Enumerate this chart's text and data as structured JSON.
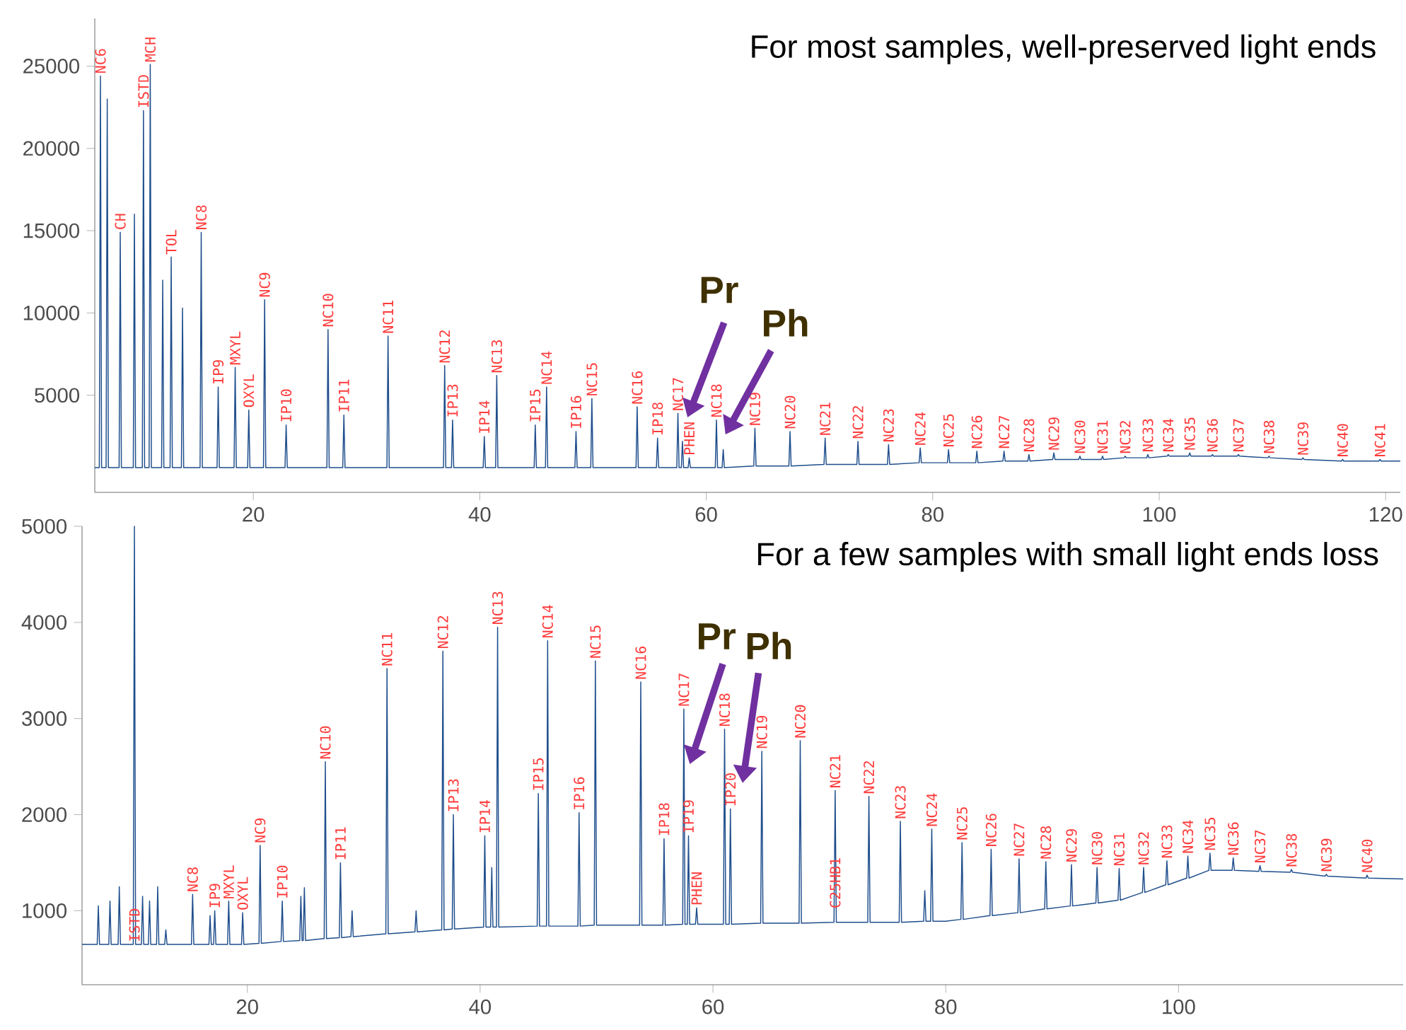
{
  "chart_data": [
    {
      "type": "line",
      "color": "#1f4e8c",
      "xlim": [
        6,
        121.3
      ],
      "ylim": [
        -900,
        27900
      ],
      "xticks": [
        20,
        40,
        60,
        80,
        100,
        120
      ],
      "yticks": [
        5000,
        10000,
        15000,
        20000,
        25000
      ],
      "x": [
        6.0,
        6.4,
        6.5,
        6.6,
        7.0,
        7.1,
        7.2,
        8.15,
        8.25,
        8.35,
        9.4,
        9.5,
        9.6,
        10.2,
        10.3,
        10.4,
        10.8,
        10.9,
        11.0,
        11.9,
        12.0,
        12.1,
        12.65,
        12.75,
        12.85,
        13.65,
        13.75,
        13.85,
        15.3,
        15.4,
        15.5,
        16.8,
        16.9,
        17.0,
        18.3,
        18.4,
        18.5,
        19.5,
        19.6,
        19.7,
        20.9,
        21.0,
        21.1,
        22.8,
        22.9,
        23.0,
        26.5,
        26.6,
        26.7,
        27.9,
        28.0,
        28.1,
        31.8,
        31.9,
        32.0,
        36.8,
        36.9,
        37.0,
        37.5,
        37.6,
        37.7,
        40.3,
        40.4,
        40.5,
        41.4,
        41.5,
        41.6,
        44.8,
        44.9,
        45.0,
        45.8,
        45.9,
        46.0,
        48.4,
        48.5,
        48.6,
        49.8,
        49.9,
        50.0,
        53.8,
        53.9,
        54.0,
        55.6,
        55.7,
        55.8,
        57.4,
        57.5,
        57.6,
        57.8,
        57.9,
        58.0,
        58.4,
        58.5,
        58.6,
        60.0,
        60.8,
        60.9,
        61.0,
        61.4,
        61.5,
        61.6,
        64.2,
        64.3,
        64.4,
        67.3,
        67.4,
        67.5,
        70.4,
        70.5,
        70.6,
        73.3,
        73.4,
        73.5,
        76.0,
        76.1,
        76.2,
        78.8,
        78.9,
        79.0,
        81.3,
        81.4,
        81.5,
        83.8,
        83.9,
        84.0,
        86.2,
        86.3,
        86.4,
        88.4,
        88.5,
        88.6,
        90.6,
        90.7,
        90.8,
        92.9,
        93.0,
        93.1,
        94.9,
        95.0,
        95.1,
        96.9,
        97.0,
        97.1,
        98.9,
        99.0,
        99.1,
        100.7,
        100.8,
        100.9,
        102.6,
        102.7,
        102.8,
        104.6,
        104.7,
        104.8,
        106.9,
        107.0,
        107.1,
        109.6,
        109.7,
        109.8,
        112.6,
        112.7,
        112.8,
        116.1,
        116.2,
        116.3,
        119.4,
        119.5,
        119.6,
        121.3
      ],
      "values": [
        600,
        600,
        24400,
        600,
        600,
        23000,
        600,
        600,
        14900,
        600,
        600,
        16000,
        600,
        600,
        22300,
        600,
        600,
        25100,
        600,
        600,
        12000,
        600,
        600,
        13400,
        600,
        600,
        10300,
        600,
        600,
        14900,
        600,
        600,
        5500,
        600,
        600,
        6700,
        600,
        600,
        4100,
        600,
        600,
        10800,
        600,
        600,
        3200,
        600,
        600,
        9000,
        600,
        600,
        3800,
        600,
        600,
        8600,
        600,
        600,
        6800,
        600,
        600,
        3500,
        600,
        600,
        2500,
        600,
        600,
        6200,
        600,
        600,
        3200,
        600,
        600,
        5500,
        600,
        600,
        2800,
        600,
        600,
        4800,
        600,
        600,
        4300,
        600,
        600,
        2400,
        600,
        600,
        3900,
        600,
        600,
        2200,
        600,
        600,
        1200,
        600,
        600,
        600,
        3500,
        600,
        600,
        1700,
        600,
        700,
        3000,
        700,
        700,
        2800,
        700,
        800,
        2400,
        800,
        800,
        2200,
        800,
        800,
        2000,
        800,
        900,
        1800,
        900,
        900,
        1700,
        900,
        900,
        1600,
        900,
        1000,
        1600,
        1000,
        1000,
        1400,
        1000,
        1100,
        1500,
        1100,
        1100,
        1300,
        1100,
        1100,
        1300,
        1100,
        1200,
        1300,
        1200,
        1200,
        1400,
        1200,
        1300,
        1400,
        1300,
        1300,
        1500,
        1300,
        1300,
        1400,
        1300,
        1300,
        1400,
        1300,
        1200,
        1300,
        1200,
        1100,
        1200,
        1100,
        1000,
        1100,
        1000,
        1000,
        1100,
        1000,
        1000
      ],
      "annotations": [
        "For most samples, well-preserved light ends",
        "Pr",
        "Ph",
        {
          "text": "NC6",
          "x": 6.5,
          "y": 24400
        },
        {
          "text": "CH",
          "x": 8.25,
          "y": 14900
        },
        {
          "text": "ISTD",
          "x": 10.3,
          "y": 22300
        },
        {
          "text": "MCH",
          "x": 10.9,
          "y": 25100
        },
        {
          "text": "TOL",
          "x": 12.75,
          "y": 13400
        },
        {
          "text": "NC8",
          "x": 15.4,
          "y": 14900
        },
        {
          "text": "IP9",
          "x": 16.9,
          "y": 5500
        },
        {
          "text": "MXYL",
          "x": 18.4,
          "y": 6700
        },
        {
          "text": "OXYL",
          "x": 19.6,
          "y": 4100
        },
        {
          "text": "NC9",
          "x": 21.0,
          "y": 10800
        },
        {
          "text": "IP10",
          "x": 22.9,
          "y": 3200
        },
        {
          "text": "NC10",
          "x": 26.6,
          "y": 9000
        },
        {
          "text": "IP11",
          "x": 28.0,
          "y": 3800
        },
        {
          "text": "NC11",
          "x": 31.9,
          "y": 8600
        },
        {
          "text": "NC12",
          "x": 36.9,
          "y": 6800
        },
        {
          "text": "IP13",
          "x": 37.6,
          "y": 3500
        },
        {
          "text": "IP14",
          "x": 40.4,
          "y": 2500
        },
        {
          "text": "NC13",
          "x": 41.5,
          "y": 6200
        },
        {
          "text": "IP15",
          "x": 44.9,
          "y": 3200
        },
        {
          "text": "NC14",
          "x": 45.9,
          "y": 5500
        },
        {
          "text": "IP16",
          "x": 48.5,
          "y": 2800
        },
        {
          "text": "NC15",
          "x": 49.9,
          "y": 4800
        },
        {
          "text": "NC16",
          "x": 53.9,
          "y": 4300
        },
        {
          "text": "IP18",
          "x": 55.7,
          "y": 2400
        },
        {
          "text": "NC17",
          "x": 57.5,
          "y": 3900
        },
        {
          "text": "PHEN",
          "x": 58.5,
          "y": 1200
        },
        {
          "text": "NC18",
          "x": 60.9,
          "y": 3500
        },
        {
          "text": "NC19",
          "x": 64.3,
          "y": 3000
        },
        {
          "text": "NC20",
          "x": 67.4,
          "y": 2800
        },
        {
          "text": "NC21",
          "x": 70.5,
          "y": 2400
        },
        {
          "text": "NC22",
          "x": 73.4,
          "y": 2200
        },
        {
          "text": "NC23",
          "x": 76.1,
          "y": 2000
        },
        {
          "text": "NC24",
          "x": 78.9,
          "y": 1800
        },
        {
          "text": "NC25",
          "x": 81.4,
          "y": 1700
        },
        {
          "text": "NC26",
          "x": 83.9,
          "y": 1600
        },
        {
          "text": "NC27",
          "x": 86.3,
          "y": 1600
        },
        {
          "text": "NC28",
          "x": 88.5,
          "y": 1400
        },
        {
          "text": "NC29",
          "x": 90.7,
          "y": 1500
        },
        {
          "text": "NC30",
          "x": 93.0,
          "y": 1300
        },
        {
          "text": "NC31",
          "x": 95.0,
          "y": 1300
        },
        {
          "text": "NC32",
          "x": 97.0,
          "y": 1300
        },
        {
          "text": "NC33",
          "x": 99.0,
          "y": 1400
        },
        {
          "text": "NC34",
          "x": 100.8,
          "y": 1400
        },
        {
          "text": "NC35",
          "x": 102.7,
          "y": 1500
        },
        {
          "text": "NC36",
          "x": 104.7,
          "y": 1400
        },
        {
          "text": "NC37",
          "x": 107.0,
          "y": 1400
        },
        {
          "text": "NC38",
          "x": 109.7,
          "y": 1300
        },
        {
          "text": "NC39",
          "x": 112.7,
          "y": 1200
        },
        {
          "text": "NC40",
          "x": 116.2,
          "y": 1100
        },
        {
          "text": "NC41",
          "x": 119.5,
          "y": 1100
        }
      ]
    },
    {
      "type": "line",
      "color": "#1f4e8c",
      "xlim": [
        5.8,
        119.3
      ],
      "ylim": [
        230,
        5000
      ],
      "xticks": [
        20,
        40,
        60,
        80,
        100
      ],
      "yticks": [
        1000,
        2000,
        3000,
        4000,
        5000
      ],
      "x": [
        5.8,
        7.1,
        7.2,
        7.3,
        8.1,
        8.2,
        8.3,
        8.9,
        9.0,
        9.1,
        10.2,
        10.3,
        10.4,
        10.9,
        11.0,
        11.1,
        11.5,
        11.6,
        11.7,
        12.2,
        12.3,
        12.4,
        12.9,
        13.0,
        13.1,
        15.2,
        15.3,
        15.4,
        16.7,
        16.8,
        16.9,
        17.1,
        17.2,
        17.3,
        18.3,
        18.4,
        18.5,
        19.5,
        19.6,
        19.7,
        21.0,
        21.1,
        21.2,
        22.9,
        23.0,
        23.1,
        24.5,
        24.6,
        24.7,
        24.8,
        24.9,
        25.0,
        26.6,
        26.7,
        26.8,
        27.9,
        28.0,
        28.1,
        28.9,
        29.0,
        29.1,
        31.9,
        32.0,
        32.1,
        34.4,
        34.5,
        34.6,
        36.7,
        36.8,
        36.9,
        37.6,
        37.7,
        37.8,
        40.3,
        40.4,
        40.5,
        40.9,
        41.0,
        41.1,
        41.4,
        41.5,
        41.6,
        44.9,
        45.0,
        45.1,
        45.7,
        45.8,
        45.9,
        48.4,
        48.5,
        48.6,
        49.8,
        49.9,
        50.0,
        53.7,
        53.8,
        53.9,
        55.7,
        55.8,
        55.9,
        57.4,
        57.5,
        57.6,
        57.8,
        57.9,
        58.0,
        58.5,
        58.6,
        58.7,
        60.9,
        61.0,
        61.1,
        61.4,
        61.5,
        61.6,
        64.1,
        64.2,
        64.3,
        67.4,
        67.5,
        67.6,
        70.4,
        70.5,
        70.6,
        73.3,
        73.4,
        73.5,
        76.0,
        76.1,
        76.2,
        78.1,
        78.2,
        78.3,
        78.7,
        78.8,
        78.9,
        80.0,
        81.3,
        81.4,
        81.5,
        83.8,
        83.9,
        84.0,
        86.2,
        86.3,
        86.4,
        88.5,
        88.6,
        88.7,
        90.7,
        90.8,
        90.9,
        92.9,
        93.0,
        93.1,
        94.8,
        94.9,
        95.0,
        96.9,
        97.0,
        97.1,
        98.9,
        99.0,
        99.1,
        100.7,
        100.8,
        100.9,
        102.6,
        102.7,
        102.8,
        104.6,
        104.7,
        104.8,
        106.9,
        107.0,
        107.1,
        109.6,
        109.7,
        109.8,
        112.6,
        112.7,
        112.8,
        116.1,
        116.2,
        116.3,
        119.3
      ],
      "values": [
        650,
        650,
        1050,
        650,
        650,
        1100,
        650,
        650,
        1250,
        650,
        650,
        5000,
        650,
        650,
        1150,
        650,
        650,
        1100,
        650,
        650,
        1250,
        650,
        650,
        800,
        650,
        650,
        1170,
        650,
        650,
        950,
        650,
        650,
        1000,
        650,
        650,
        1100,
        650,
        650,
        980,
        650,
        660,
        1680,
        660,
        680,
        1100,
        680,
        690,
        1150,
        690,
        690,
        1240,
        690,
        710,
        2550,
        710,
        720,
        1500,
        720,
        730,
        1000,
        730,
        760,
        3520,
        760,
        780,
        1000,
        780,
        800,
        3700,
        800,
        810,
        2000,
        810,
        830,
        1780,
        830,
        830,
        1450,
        830,
        830,
        3950,
        830,
        840,
        2220,
        840,
        840,
        3810,
        840,
        840,
        2020,
        840,
        850,
        3600,
        850,
        850,
        3380,
        850,
        850,
        1750,
        850,
        860,
        3100,
        860,
        860,
        1780,
        860,
        860,
        1030,
        860,
        860,
        2890,
        860,
        860,
        2060,
        860,
        870,
        2660,
        870,
        870,
        2770,
        870,
        880,
        2250,
        880,
        880,
        2190,
        880,
        880,
        1930,
        880,
        890,
        1210,
        890,
        890,
        1850,
        890,
        890,
        910,
        1710,
        910,
        950,
        1640,
        950,
        980,
        1540,
        980,
        1020,
        1510,
        1020,
        1050,
        1480,
        1050,
        1080,
        1450,
        1080,
        1110,
        1440,
        1110,
        1190,
        1450,
        1190,
        1270,
        1520,
        1270,
        1340,
        1570,
        1340,
        1420,
        1600,
        1420,
        1420,
        1550,
        1420,
        1410,
        1470,
        1410,
        1400,
        1430,
        1400,
        1360,
        1380,
        1360,
        1340,
        1370,
        1340,
        1330
      ],
      "annotations": [
        "For a few samples with small light ends loss",
        "Pr",
        "Ph",
        {
          "text": "ISTD",
          "x": 10.3,
          "y": 650
        },
        {
          "text": "NC8",
          "x": 15.3,
          "y": 1170
        },
        {
          "text": "IP9",
          "x": 17.2,
          "y": 1000
        },
        {
          "text": "MXYL",
          "x": 18.4,
          "y": 1100
        },
        {
          "text": "OXYL",
          "x": 19.6,
          "y": 980
        },
        {
          "text": "NC9",
          "x": 21.1,
          "y": 1680
        },
        {
          "text": "IP10",
          "x": 23.0,
          "y": 1100
        },
        {
          "text": "NC10",
          "x": 26.7,
          "y": 2550
        },
        {
          "text": "IP11",
          "x": 28.0,
          "y": 1500
        },
        {
          "text": "NC11",
          "x": 32.0,
          "y": 3520
        },
        {
          "text": "NC12",
          "x": 36.8,
          "y": 3700
        },
        {
          "text": "IP13",
          "x": 37.7,
          "y": 2000
        },
        {
          "text": "IP14",
          "x": 40.4,
          "y": 1780
        },
        {
          "text": "NC13",
          "x": 41.5,
          "y": 3950
        },
        {
          "text": "IP15",
          "x": 45.0,
          "y": 2220
        },
        {
          "text": "NC14",
          "x": 45.8,
          "y": 3810
        },
        {
          "text": "IP16",
          "x": 48.5,
          "y": 2020
        },
        {
          "text": "NC15",
          "x": 49.9,
          "y": 3600
        },
        {
          "text": "NC16",
          "x": 53.8,
          "y": 3380
        },
        {
          "text": "IP18",
          "x": 55.8,
          "y": 1750
        },
        {
          "text": "NC17",
          "x": 57.5,
          "y": 3100
        },
        {
          "text": "IP19",
          "x": 57.9,
          "y": 1780
        },
        {
          "text": "PHEN",
          "x": 58.6,
          "y": 1030
        },
        {
          "text": "NC18",
          "x": 61.0,
          "y": 2890
        },
        {
          "text": "IP20",
          "x": 61.5,
          "y": 2060
        },
        {
          "text": "NC19",
          "x": 64.2,
          "y": 2660
        },
        {
          "text": "NC20",
          "x": 67.5,
          "y": 2770
        },
        {
          "text": "NC21",
          "x": 70.5,
          "y": 2250
        },
        {
          "text": "C25HB1",
          "x": 70.5,
          "y": 1000
        },
        {
          "text": "NC22",
          "x": 73.4,
          "y": 2190
        },
        {
          "text": "NC23",
          "x": 76.1,
          "y": 1930
        },
        {
          "text": "NC24",
          "x": 78.8,
          "y": 1850
        },
        {
          "text": "NC25",
          "x": 81.4,
          "y": 1710
        },
        {
          "text": "NC26",
          "x": 83.9,
          "y": 1640
        },
        {
          "text": "NC27",
          "x": 86.3,
          "y": 1540
        },
        {
          "text": "NC28",
          "x": 88.6,
          "y": 1510
        },
        {
          "text": "NC29",
          "x": 90.8,
          "y": 1480
        },
        {
          "text": "NC30",
          "x": 93.0,
          "y": 1450
        },
        {
          "text": "NC31",
          "x": 94.9,
          "y": 1440
        },
        {
          "text": "NC32",
          "x": 97.0,
          "y": 1450
        },
        {
          "text": "NC33",
          "x": 99.0,
          "y": 1520
        },
        {
          "text": "NC34",
          "x": 100.8,
          "y": 1570
        },
        {
          "text": "NC35",
          "x": 102.7,
          "y": 1600
        },
        {
          "text": "NC36",
          "x": 104.7,
          "y": 1550
        },
        {
          "text": "NC37",
          "x": 107.0,
          "y": 1470
        },
        {
          "text": "NC38",
          "x": 109.7,
          "y": 1430
        },
        {
          "text": "NC39",
          "x": 112.7,
          "y": 1380
        },
        {
          "text": "NC40",
          "x": 116.2,
          "y": 1370
        }
      ]
    }
  ]
}
